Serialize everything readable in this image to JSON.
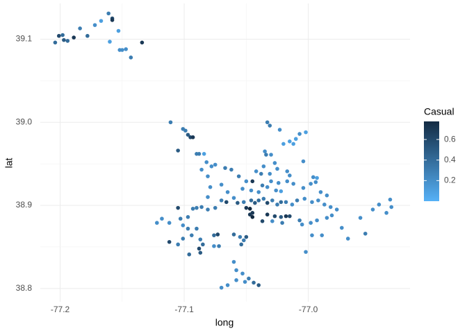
{
  "chart_data": {
    "type": "scatter",
    "x_label": "long",
    "y_label": "lat",
    "xlim": [
      -77.216,
      -76.918
    ],
    "xticks": [
      -77.2,
      -77.1,
      {
        "value": -77.0,
        "label": "-77.0"
      }
    ],
    "ylim": [
      38.784,
      39.143
    ],
    "yticks": [
      39.1,
      {
        "value": 39.0,
        "label": "39.0"
      },
      38.9,
      38.8
    ],
    "grid": true,
    "color_title": "Casual",
    "color_lim": [
      0,
      0.776
    ],
    "color_ticks": [
      0.2,
      0.4,
      0.6
    ],
    "color_range": [
      "#56B1F7",
      "#132B43"
    ],
    "x": [
      -77.204,
      -77.201,
      -77.198,
      -77.197,
      -77.194,
      -77.189,
      -77.184,
      -77.178,
      -77.172,
      -77.167,
      -77.161,
      -77.158,
      -77.158,
      -77.16,
      -77.153,
      -77.152,
      -77.15,
      -77.147,
      -77.143,
      -77.134,
      -77.111,
      -77.101,
      -77.099,
      -77.097,
      -77.095,
      -77.093,
      -77.105,
      -77.09,
      -77.088,
      -77.084,
      -77.082,
      -77.078,
      -77.075,
      -77.067,
      -77.062,
      -77.056,
      -77.05,
      -77.045,
      -77.033,
      -77.031,
      -77.023,
      -77.002,
      -77.007,
      -77.01,
      -77.015,
      -77.02,
      -77.012,
      -77.035,
      -77.034,
      -77.03,
      -77.004,
      -77.027,
      -77.036,
      -77.025,
      -76.996,
      -76.993,
      -77.042,
      -77.038,
      -77.031,
      -77.017,
      -77.015,
      -76.994,
      -76.998,
      -77.03,
      -77.024,
      -77.017,
      -77.012,
      -77.004,
      -77.037,
      -77.033,
      -77.026,
      -77.022,
      -77.053,
      -77.046,
      -77.04,
      -77.086,
      -77.081,
      -77.079,
      -77.07,
      -77.065,
      -77.06,
      -77.081,
      -77.07,
      -77.066,
      -77.057,
      -77.052,
      -77.046,
      -77.043,
      -77.04,
      -77.036,
      -77.033,
      -77.029,
      -77.025,
      -77.022,
      -77.018,
      -77.013,
      -77.009,
      -77.003,
      -76.997,
      -76.992,
      -76.987,
      -76.982,
      -76.977,
      -76.99,
      -76.985,
      -77.05,
      -77.047,
      -77.045,
      -77.047,
      -77.045,
      -77.037,
      -77.033,
      -77.027,
      -77.022,
      -77.018,
      -77.015,
      -77.029,
      -77.021,
      -77.007,
      -77.005,
      -76.998,
      -76.993,
      -76.985,
      -76.981,
      -76.973,
      -76.989,
      -76.997,
      -77.002,
      -76.968,
      -76.958,
      -76.948,
      -76.943,
      -76.937,
      -76.934,
      -76.933,
      -76.954,
      -77.122,
      -77.118,
      -77.112,
      -77.105,
      -77.103,
      -77.101,
      -77.097,
      -77.093,
      -77.09,
      -77.086,
      -77.081,
      -77.075,
      -77.097,
      -77.09,
      -77.112,
      -77.105,
      -77.101,
      -77.094,
      -77.087,
      -77.076,
      -77.073,
      -77.088,
      -77.087,
      -77.085,
      -77.096,
      -77.076,
      -77.072,
      -77.06,
      -77.055,
      -77.052,
      -77.054,
      -77.05,
      -77.06,
      -77.058,
      -77.053,
      -77.058,
      -77.051,
      -77.048,
      -77.044,
      -77.04,
      -77.07,
      -77.065
    ],
    "values": [
      39.096,
      39.104,
      39.105,
      39.099,
      39.098,
      39.102,
      39.113,
      39.104,
      39.117,
      39.122,
      39.131,
      39.125,
      39.123,
      39.097,
      39.11,
      39.087,
      39.087,
      39.088,
      39.078,
      39.096,
      39.0,
      38.992,
      38.99,
      38.985,
      38.982,
      38.982,
      38.966,
      38.962,
      38.962,
      38.962,
      38.952,
      38.947,
      38.949,
      38.945,
      38.943,
      38.935,
      38.929,
      38.929,
      39.0,
      38.996,
      38.991,
      38.988,
      38.986,
      38.98,
      38.977,
      38.974,
      38.974,
      38.965,
      38.961,
      38.961,
      38.953,
      38.951,
      38.947,
      38.944,
      38.934,
      38.933,
      38.941,
      38.938,
      38.938,
      38.941,
      38.936,
      38.928,
      38.926,
      38.929,
      38.927,
      38.929,
      38.926,
      38.921,
      38.924,
      38.922,
      38.918,
      38.917,
      38.92,
      38.918,
      38.916,
      38.943,
      38.935,
      38.922,
      38.925,
      38.916,
      38.909,
      38.91,
      38.906,
      38.904,
      38.903,
      38.904,
      38.906,
      38.903,
      38.906,
      38.908,
      38.903,
      38.906,
      38.901,
      38.904,
      38.904,
      38.901,
      38.906,
      38.908,
      38.904,
      38.906,
      38.901,
      38.898,
      38.895,
      38.916,
      38.912,
      38.897,
      38.896,
      38.891,
      38.889,
      38.886,
      38.881,
      38.889,
      38.887,
      38.886,
      38.887,
      38.887,
      38.881,
      38.879,
      38.882,
      38.877,
      38.879,
      38.882,
      38.885,
      38.888,
      38.873,
      38.864,
      38.864,
      38.844,
      38.86,
      38.885,
      38.895,
      38.901,
      38.891,
      38.907,
      38.898,
      38.866,
      38.879,
      38.884,
      38.879,
      38.897,
      38.884,
      38.876,
      38.886,
      38.896,
      38.897,
      38.898,
      38.895,
      38.897,
      38.872,
      38.872,
      38.856,
      38.853,
      38.86,
      38.864,
      38.859,
      38.864,
      38.865,
      38.848,
      38.843,
      38.853,
      38.841,
      38.851,
      38.851,
      38.865,
      38.862,
      38.858,
      38.853,
      38.862,
      38.832,
      38.822,
      38.818,
      38.81,
      38.808,
      38.812,
      38.807,
      38.804,
      38.801,
      38.804
    ],
    "color_values": [
      0.4,
      0.6,
      0.4,
      0.5,
      0.4,
      0.7,
      0.3,
      0.4,
      0.2,
      0.1,
      0.3,
      0.6,
      0.7,
      0.1,
      0.1,
      0.2,
      0.2,
      0.2,
      0.3,
      0.7,
      0.3,
      0.3,
      0.3,
      0.5,
      0.6,
      0.7,
      0.5,
      0.3,
      0.3,
      0.1,
      0.2,
      0.2,
      0.2,
      0.3,
      0.3,
      0.3,
      0.2,
      0.7,
      0.3,
      0.3,
      0.2,
      0.1,
      0.2,
      0.1,
      0.1,
      0.1,
      0.1,
      0.2,
      0.3,
      0.2,
      0.2,
      0.2,
      0.2,
      0.2,
      0.2,
      0.1,
      0.2,
      0.3,
      0.2,
      0.2,
      0.2,
      0.2,
      0.2,
      0.2,
      0.2,
      0.2,
      0.2,
      0.2,
      0.3,
      0.2,
      0.2,
      0.1,
      0.2,
      0.2,
      0.2,
      0.2,
      0.2,
      0.2,
      0.2,
      0.2,
      0.2,
      0.2,
      0.3,
      0.6,
      0.5,
      0.3,
      0.4,
      0.5,
      0.4,
      0.3,
      0.6,
      0.3,
      0.3,
      0.4,
      0.3,
      0.2,
      0.3,
      0.2,
      0.2,
      0.2,
      0.2,
      0.2,
      0.2,
      0.2,
      0.2,
      0.7,
      0.8,
      0.7,
      0.7,
      0.8,
      0.6,
      0.7,
      0.6,
      0.5,
      0.7,
      0.6,
      0.2,
      0.3,
      0.3,
      0.2,
      0.2,
      0.2,
      0.2,
      0.2,
      0.2,
      0.2,
      0.2,
      0.2,
      0.2,
      0.2,
      0.2,
      0.2,
      0.2,
      0.2,
      0.2,
      0.3,
      0.2,
      0.2,
      0.2,
      0.6,
      0.3,
      0.2,
      0.3,
      0.3,
      0.3,
      0.3,
      0.3,
      0.3,
      0.3,
      0.3,
      0.6,
      0.3,
      0.3,
      0.3,
      0.3,
      0.4,
      0.6,
      0.6,
      0.5,
      0.4,
      0.4,
      0.2,
      0.3,
      0.4,
      0.3,
      0.3,
      0.4,
      0.5,
      0.2,
      0.2,
      0.2,
      0.2,
      0.2,
      0.3,
      0.4,
      0.5,
      0.2,
      0.2
    ]
  }
}
